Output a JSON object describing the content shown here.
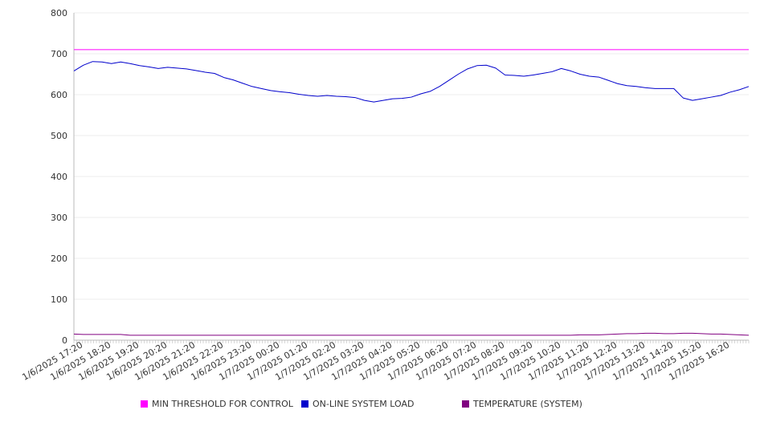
{
  "colors": {
    "min_threshold": "#ff00ff",
    "online_load": "#0000cc",
    "temperature": "#800080",
    "grid": "#eeeeee",
    "axis": "#bbbbbb"
  },
  "chart_data": {
    "type": "line",
    "title": "",
    "xlabel": "",
    "ylabel": "",
    "ylim": [
      0,
      800
    ],
    "yticks": [
      "0",
      "100",
      "200",
      "300",
      "400",
      "500",
      "600",
      "700",
      "800"
    ],
    "grid": true,
    "legend_position": "bottom",
    "x_tick_labels": [
      "1/6/2025 17:20",
      "1/6/2025 18:20",
      "1/6/2025 19:20",
      "1/6/2025 20:20",
      "1/6/2025 21:20",
      "1/6/2025 22:20",
      "1/6/2025 23:20",
      "1/7/2025 00:20",
      "1/7/2025 01:20",
      "1/7/2025 02:20",
      "1/7/2025 03:20",
      "1/7/2025 04:20",
      "1/7/2025 05:20",
      "1/7/2025 06:20",
      "1/7/2025 07:20",
      "1/7/2025 08:20",
      "1/7/2025 09:20",
      "1/7/2025 10:20",
      "1/7/2025 11:20",
      "1/7/2025 12:20",
      "1/7/2025 13:20",
      "1/7/2025 14:20",
      "1/7/2025 15:20",
      "1/7/2025 16:20"
    ],
    "x": [
      "1/6/2025 17:00",
      "1/6/2025 17:20",
      "1/6/2025 17:40",
      "1/6/2025 18:00",
      "1/6/2025 18:20",
      "1/6/2025 18:40",
      "1/6/2025 19:00",
      "1/6/2025 19:20",
      "1/6/2025 19:40",
      "1/6/2025 20:00",
      "1/6/2025 20:20",
      "1/6/2025 20:40",
      "1/6/2025 21:00",
      "1/6/2025 21:20",
      "1/6/2025 21:40",
      "1/6/2025 22:00",
      "1/6/2025 22:20",
      "1/6/2025 22:40",
      "1/6/2025 23:00",
      "1/6/2025 23:20",
      "1/6/2025 23:40",
      "1/7/2025 00:00",
      "1/7/2025 00:20",
      "1/7/2025 00:40",
      "1/7/2025 01:00",
      "1/7/2025 01:20",
      "1/7/2025 01:40",
      "1/7/2025 02:00",
      "1/7/2025 02:20",
      "1/7/2025 02:40",
      "1/7/2025 03:00",
      "1/7/2025 03:20",
      "1/7/2025 03:40",
      "1/7/2025 04:00",
      "1/7/2025 04:20",
      "1/7/2025 04:40",
      "1/7/2025 05:00",
      "1/7/2025 05:20",
      "1/7/2025 05:40",
      "1/7/2025 06:00",
      "1/7/2025 06:20",
      "1/7/2025 06:40",
      "1/7/2025 07:00",
      "1/7/2025 07:20",
      "1/7/2025 07:40",
      "1/7/2025 08:00",
      "1/7/2025 08:20",
      "1/7/2025 08:40",
      "1/7/2025 09:00",
      "1/7/2025 09:20",
      "1/7/2025 09:40",
      "1/7/2025 10:00",
      "1/7/2025 10:20",
      "1/7/2025 10:40",
      "1/7/2025 11:00",
      "1/7/2025 11:20",
      "1/7/2025 11:40",
      "1/7/2025 12:00",
      "1/7/2025 12:20",
      "1/7/2025 12:40",
      "1/7/2025 13:00",
      "1/7/2025 13:20",
      "1/7/2025 13:40",
      "1/7/2025 14:00",
      "1/7/2025 14:20",
      "1/7/2025 14:40",
      "1/7/2025 15:00",
      "1/7/2025 15:20",
      "1/7/2025 15:40",
      "1/7/2025 16:00",
      "1/7/2025 16:20",
      "1/7/2025 16:40",
      "1/7/2025 17:00"
    ],
    "series": [
      {
        "name": "MIN THRESHOLD FOR CONTROL",
        "color_key": "min_threshold",
        "values": [
          710,
          710,
          710,
          710,
          710,
          710,
          710,
          710,
          710,
          710,
          710,
          710,
          710,
          710,
          710,
          710,
          710,
          710,
          710,
          710,
          710,
          710,
          710,
          710,
          710,
          710,
          710,
          710,
          710,
          710,
          710,
          710,
          710,
          710,
          710,
          710,
          710,
          710,
          710,
          710,
          710,
          710,
          710,
          710,
          710,
          710,
          710,
          710,
          710,
          710,
          710,
          710,
          710,
          710,
          710,
          710,
          710,
          710,
          710,
          710,
          710,
          710,
          710,
          710,
          710,
          710,
          710,
          710,
          710,
          710,
          710,
          710,
          710
        ]
      },
      {
        "name": "ON-LINE SYSTEM LOAD",
        "color_key": "online_load",
        "values": [
          658,
          672,
          681,
          680,
          676,
          680,
          676,
          671,
          668,
          664,
          667,
          665,
          663,
          659,
          655,
          652,
          642,
          636,
          628,
          620,
          615,
          610,
          607,
          605,
          601,
          598,
          596,
          598,
          596,
          595,
          593,
          586,
          582,
          586,
          590,
          591,
          594,
          602,
          608,
          620,
          635,
          650,
          663,
          671,
          672,
          665,
          648,
          647,
          645,
          648,
          652,
          656,
          664,
          658,
          650,
          645,
          643,
          635,
          627,
          622,
          620,
          617,
          615,
          615,
          615,
          592,
          586,
          590,
          594,
          598,
          606,
          612,
          620
        ]
      },
      {
        "name": "TEMPERATURE (SYSTEM)",
        "color_key": "temperature",
        "values": [
          15,
          14,
          14,
          14,
          14,
          14,
          12,
          12,
          12,
          12,
          12,
          12,
          12,
          12,
          12,
          12,
          12,
          12,
          12,
          12,
          12,
          12,
          12,
          12,
          12,
          12,
          12,
          12,
          12,
          12,
          12,
          12,
          12,
          12,
          12,
          12,
          12,
          12,
          12,
          12,
          12,
          12,
          12,
          12,
          12,
          12,
          12,
          12,
          12,
          12,
          12,
          12,
          12,
          12,
          13,
          13,
          13,
          14,
          15,
          16,
          16,
          17,
          17,
          16,
          16,
          17,
          17,
          16,
          15,
          15,
          14,
          13,
          12
        ]
      }
    ]
  }
}
